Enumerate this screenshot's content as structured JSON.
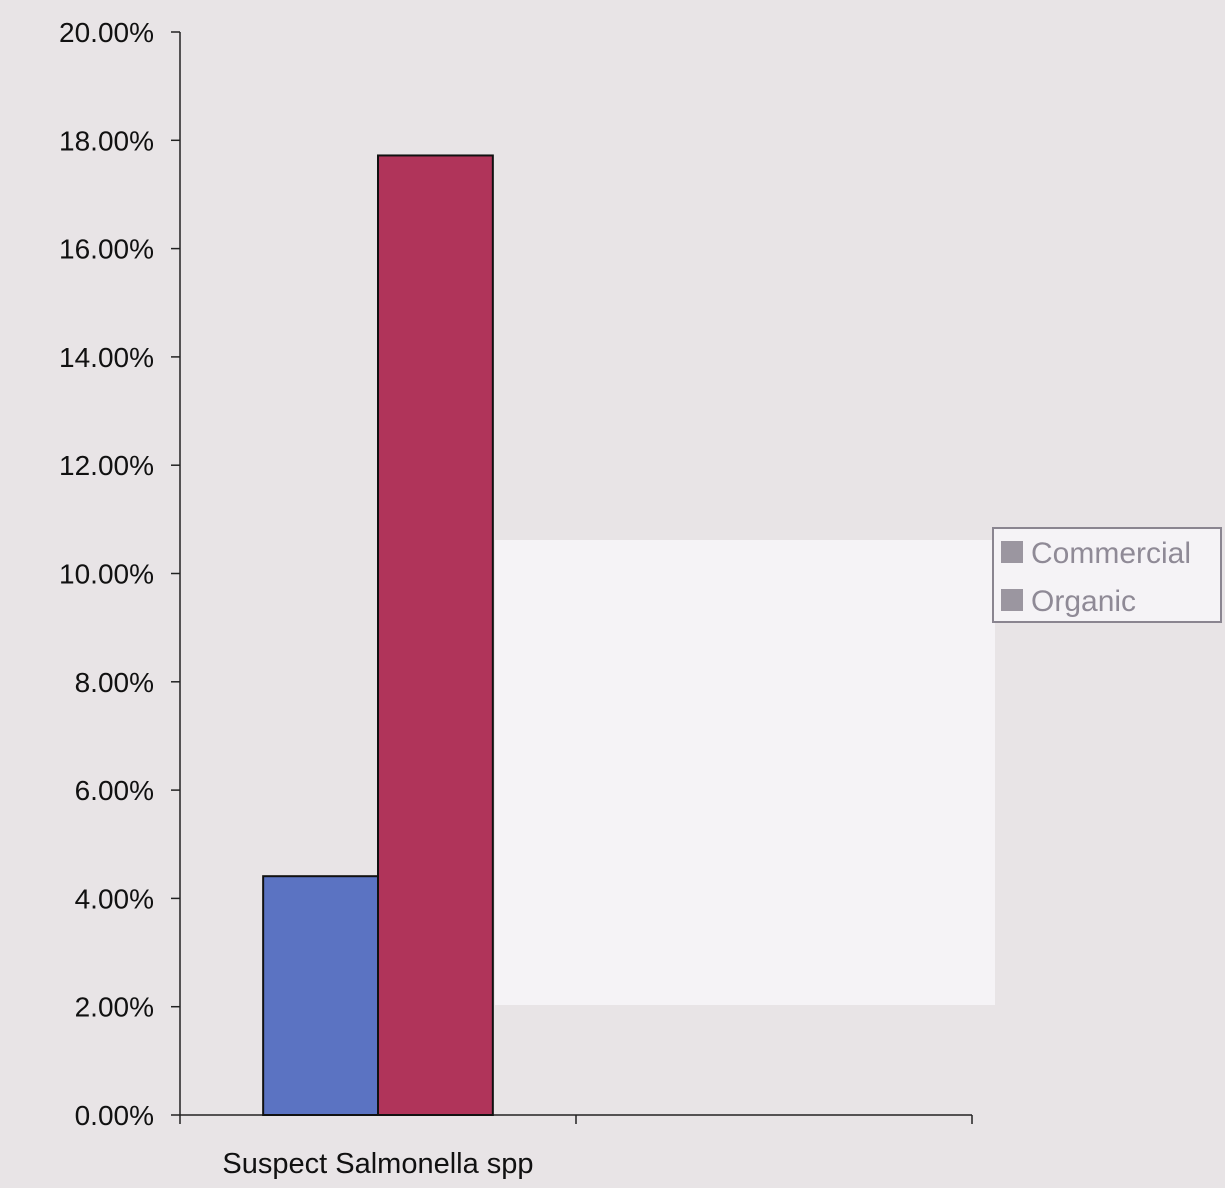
{
  "chart_data": {
    "type": "bar",
    "title": "",
    "xlabel": "",
    "ylabel": "",
    "categories": [
      "Suspect Salmonella spp",
      ""
    ],
    "series": [
      {
        "name": "Commercial",
        "color": "#5b73c2",
        "values": [
          0.0441,
          0
        ]
      },
      {
        "name": "Organic",
        "color": "#b0345a",
        "values": [
          0.1772,
          0
        ]
      }
    ],
    "ylim": [
      0,
      0.2
    ],
    "yticks": [
      0,
      0.02,
      0.04,
      0.06,
      0.08,
      0.1,
      0.12,
      0.14,
      0.16,
      0.18,
      0.2
    ],
    "ytick_labels": [
      "0.00%",
      "2.00%",
      "4.00%",
      "6.00%",
      "8.00%",
      "10.00%",
      "12.00%",
      "14.00%",
      "16.00%",
      "18.00%",
      "20.00%"
    ],
    "grid": false,
    "legend_position": "right",
    "background_color": "#e8e4e6",
    "legend_swatch_color": "#9b96a0"
  }
}
